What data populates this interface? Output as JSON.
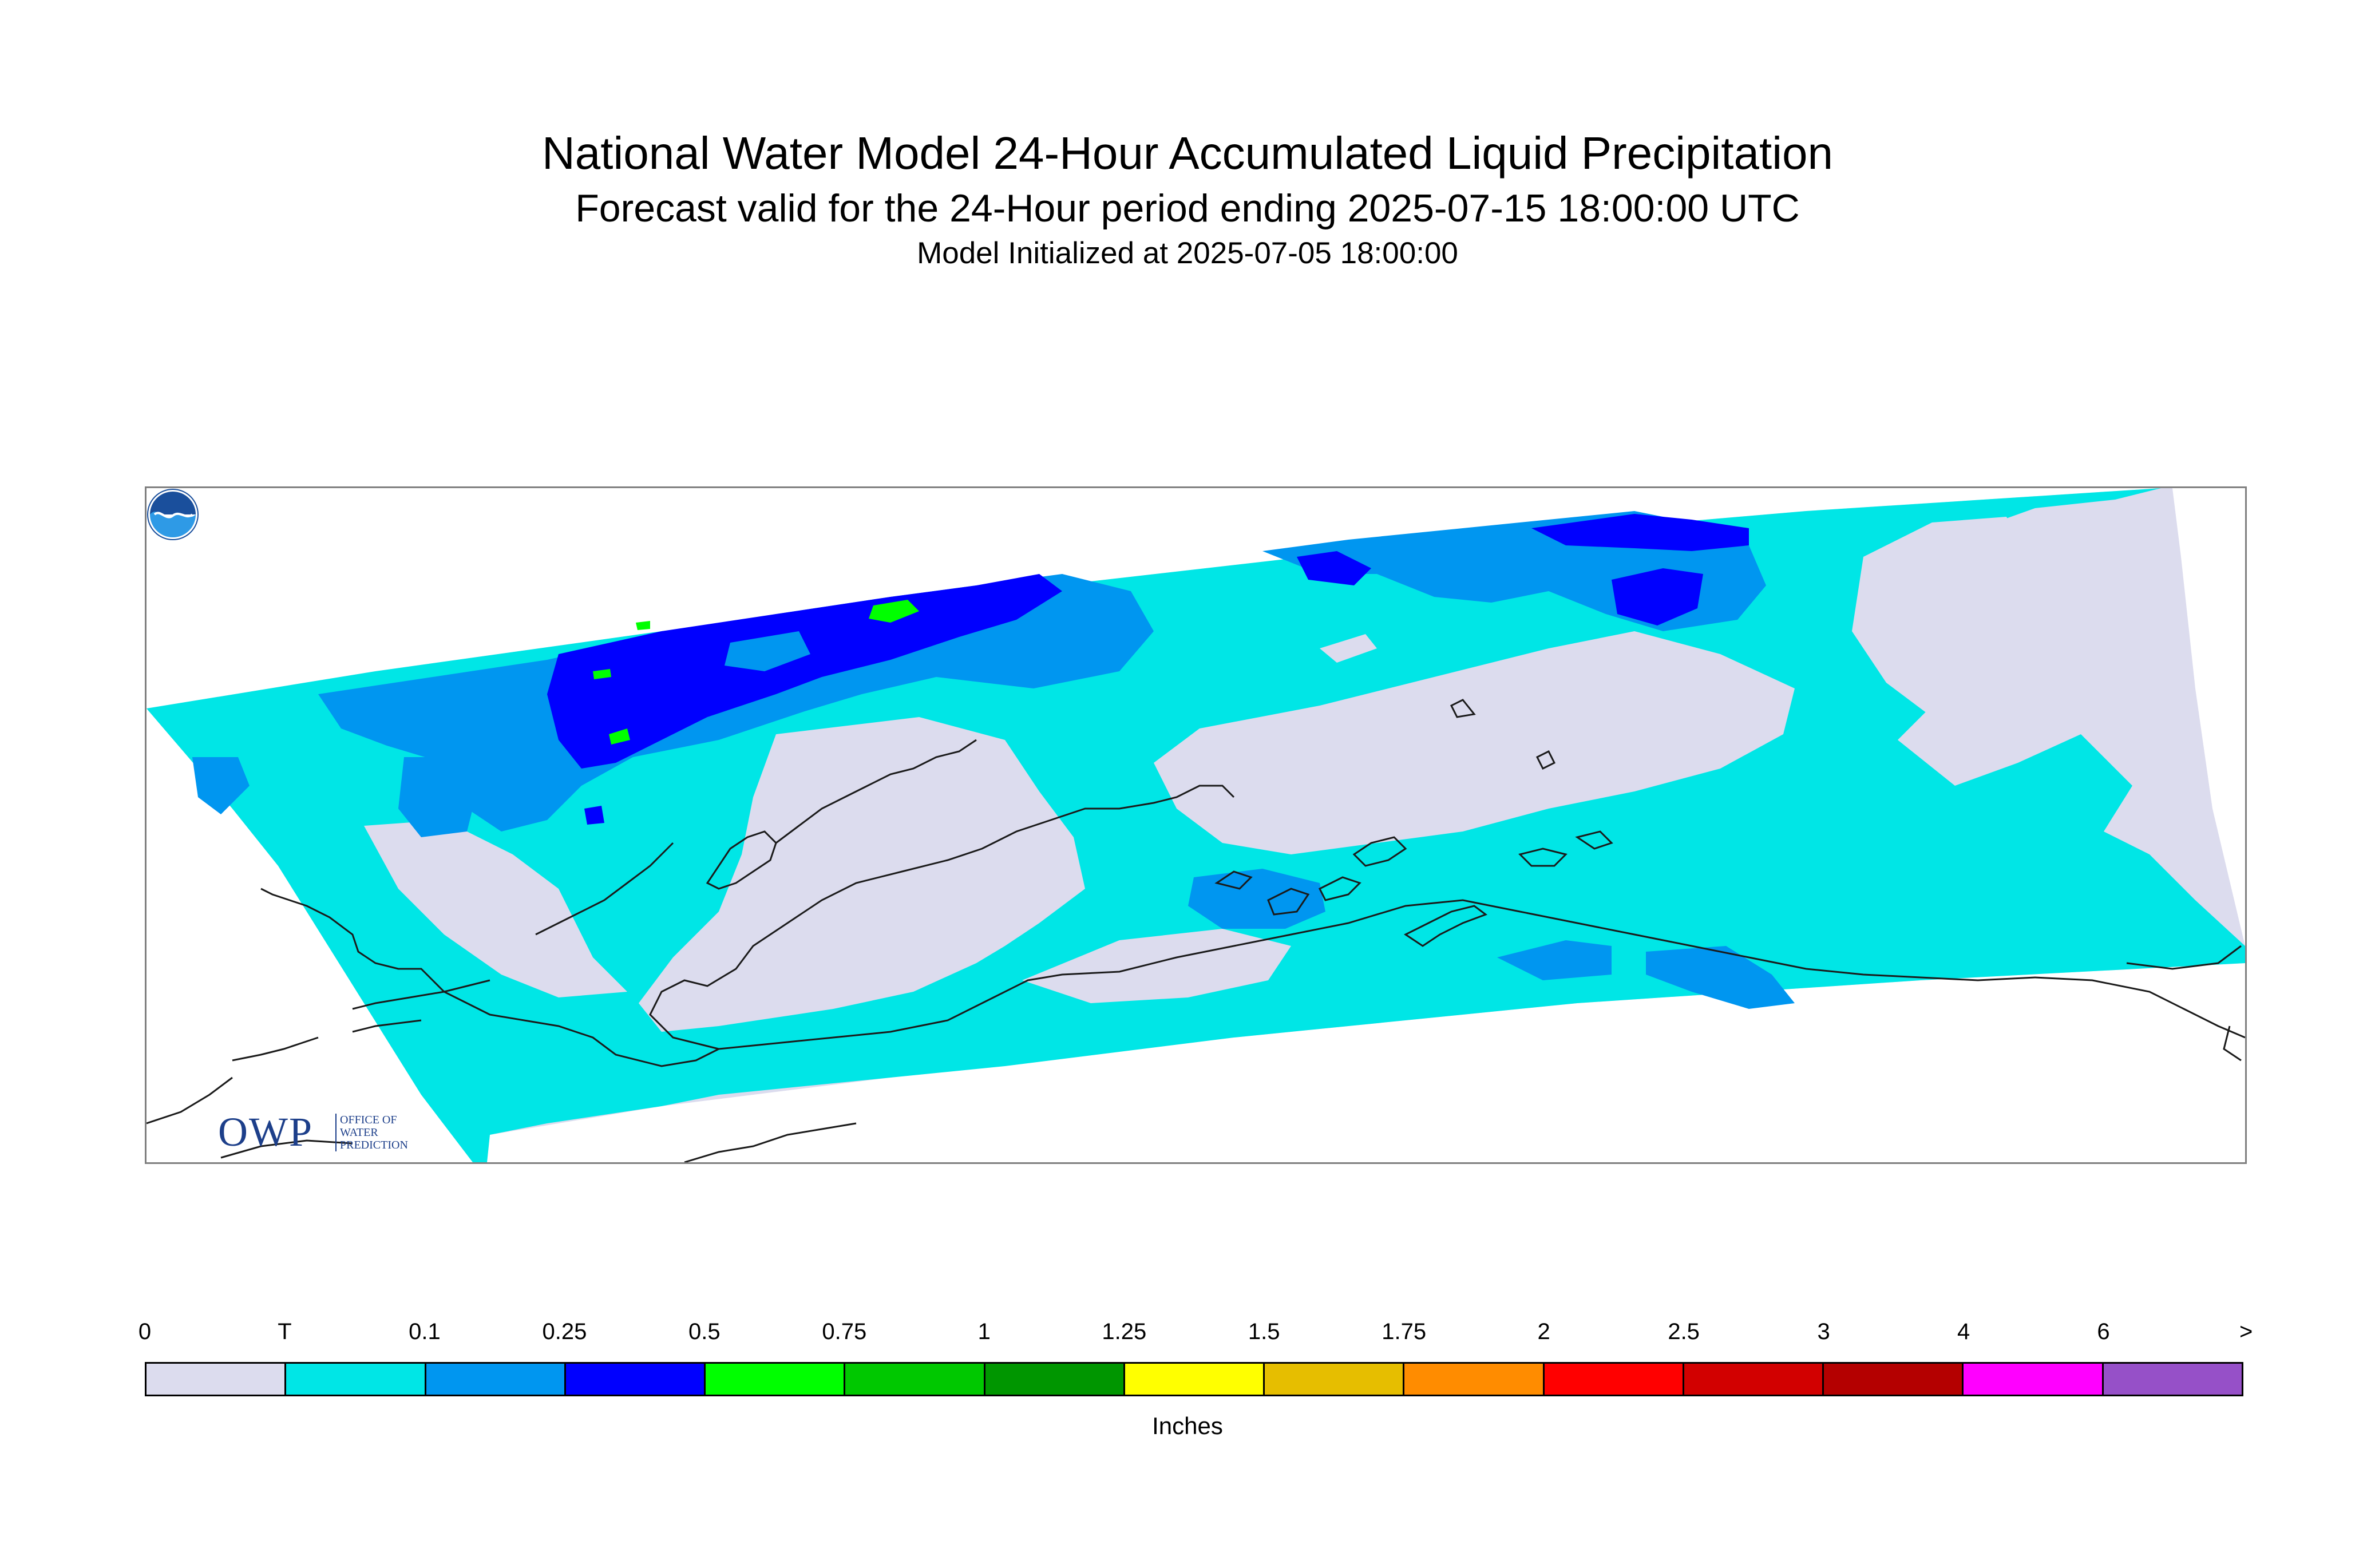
{
  "header": {
    "title": "National Water Model 24-Hour Accumulated Liquid Precipitation",
    "subtitle": "Forecast valid for the 24-Hour period ending 2025-07-15 18:00:00 UTC",
    "init": "Model Initialized at 2025-07-05 18:00:00"
  },
  "map": {
    "region_fill": "#dcdcee",
    "colors": {
      "trace": "#00e6e6",
      "light": "#0096f0",
      "medium": "#0000ff",
      "green": "#00ff00"
    },
    "logos": {
      "owp_text": "OWP",
      "owp_sub": [
        "OFFICE OF",
        "WATER",
        "PREDICTION"
      ],
      "noaa_icon": "noaa-icon"
    }
  },
  "legend": {
    "labels": [
      "0",
      "T",
      "0.1",
      "0.25",
      "0.5",
      "0.75",
      "1",
      "1.25",
      "1.5",
      "1.75",
      "2",
      "2.5",
      "3",
      "4",
      "6",
      ">"
    ],
    "colors": [
      "#dcdcee",
      "#00e6e6",
      "#0096f0",
      "#0000ff",
      "#00ff00",
      "#00c800",
      "#009600",
      "#ffff00",
      "#e6be00",
      "#ff8c00",
      "#ff0000",
      "#d20000",
      "#b40000",
      "#ff00ff",
      "#9650c8"
    ],
    "units": "Inches"
  }
}
